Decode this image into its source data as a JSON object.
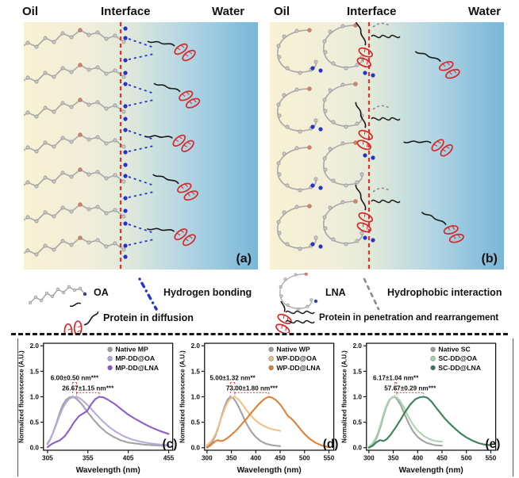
{
  "figure": {
    "panel_a": {
      "oil": "Oil",
      "interface": "Interface",
      "water": "Water",
      "label": "(a)"
    },
    "panel_b": {
      "oil": "Oil",
      "interface": "Interface",
      "water": "Water",
      "label": "(b)"
    },
    "legend": {
      "oa": "OA",
      "hydrogen_bonding": "Hydrogen bonding",
      "protein_diffusion": "Protein in diffusion",
      "lna": "LNA",
      "hydrophobic": "Hydrophobic interaction",
      "protein_penetration": "Protein in penetration and rearrangement"
    },
    "colors": {
      "interface_line": "#e03131",
      "hydrogen_bond": "#2433c9",
      "protein_red": "#d42a2a",
      "chain_gray": "#a9a9a9",
      "oil_bg": "#f8f1d2",
      "water_bg": "#7ab7d8",
      "annotation_red": "#e23b3b"
    }
  },
  "chart_data": [
    {
      "type": "line",
      "panel_label": "(c)",
      "xlabel": "Wavelength (nm)",
      "ylabel": "Normalized fluorescence (A.U.)",
      "xlim": [
        300,
        460
      ],
      "ylim": [
        -0.05,
        2.05
      ],
      "xticks": [
        305,
        355,
        405,
        455
      ],
      "yticks": [
        0.0,
        0.5,
        1.0,
        1.5,
        2.0
      ],
      "legend_position": "top-right",
      "series": [
        {
          "name": "Native MP",
          "color": "#9e9e9e",
          "x": [
            305,
            308,
            312,
            316,
            320,
            324,
            328,
            332,
            336,
            340,
            345,
            350,
            356,
            362,
            370,
            378,
            386,
            395,
            405,
            415,
            425,
            435,
            445,
            455
          ],
          "y": [
            0.07,
            0.15,
            0.3,
            0.48,
            0.68,
            0.84,
            0.94,
            0.99,
            1.0,
            0.97,
            0.9,
            0.8,
            0.67,
            0.55,
            0.41,
            0.3,
            0.22,
            0.15,
            0.1,
            0.08,
            0.06,
            0.05,
            0.04,
            0.04
          ]
        },
        {
          "name": "MP-DD@OA",
          "color": "#b6a6d9",
          "x": [
            305,
            308,
            312,
            316,
            320,
            324,
            328,
            332,
            336,
            341,
            346,
            352,
            358,
            366,
            374,
            382,
            390,
            400,
            410,
            420,
            430,
            440,
            448,
            455
          ],
          "y": [
            0.09,
            0.16,
            0.3,
            0.46,
            0.63,
            0.78,
            0.89,
            0.96,
            0.99,
            1.0,
            0.96,
            0.88,
            0.78,
            0.64,
            0.51,
            0.4,
            0.31,
            0.22,
            0.16,
            0.12,
            0.09,
            0.07,
            0.06,
            0.05
          ]
        },
        {
          "name": "MP-DD@LNA",
          "color": "#8657c2",
          "x": [
            305,
            310,
            315,
            320,
            326,
            332,
            338,
            344,
            349,
            354,
            359,
            364,
            369,
            374,
            380,
            388,
            396,
            404,
            412,
            420,
            428,
            436,
            444,
            455
          ],
          "y": [
            0.01,
            0.07,
            0.11,
            0.14,
            0.22,
            0.35,
            0.5,
            0.62,
            0.67,
            0.72,
            0.85,
            0.95,
            1.0,
            0.99,
            0.94,
            0.86,
            0.76,
            0.66,
            0.58,
            0.51,
            0.44,
            0.38,
            0.33,
            0.27
          ]
        }
      ],
      "annotations": [
        {
          "text": "6.00±0.50 nm***",
          "x1": 336,
          "x2": 341,
          "y": 1.28
        },
        {
          "text": "26.67±1.15 nm***",
          "x1": 341,
          "x2": 369,
          "y": 1.08
        }
      ]
    },
    {
      "type": "line",
      "panel_label": "(d)",
      "xlabel": "Wavelength (nm)",
      "ylabel": "Normalized fluorescence (A.U.)",
      "xlim": [
        295,
        560
      ],
      "ylim": [
        -0.05,
        2.05
      ],
      "xticks": [
        300,
        350,
        400,
        450,
        500,
        550
      ],
      "yticks": [
        0.0,
        0.5,
        1.0,
        1.5,
        2.0
      ],
      "legend_position": "top-right",
      "series": [
        {
          "name": "Native WP",
          "color": "#9e9e9e",
          "x": [
            300,
            306,
            312,
            318,
            324,
            330,
            336,
            342,
            348,
            354,
            360,
            368,
            376,
            384,
            392,
            400,
            410,
            420,
            432,
            450
          ],
          "y": [
            0.02,
            0.06,
            0.13,
            0.25,
            0.42,
            0.62,
            0.81,
            0.94,
            1.0,
            0.97,
            0.89,
            0.74,
            0.57,
            0.42,
            0.3,
            0.21,
            0.13,
            0.08,
            0.05,
            0.03
          ]
        },
        {
          "name": "WP-DD@OA",
          "color": "#f0bf85",
          "x": [
            300,
            306,
            312,
            318,
            324,
            330,
            336,
            343,
            350,
            357,
            364,
            372,
            380,
            388,
            396,
            404,
            412,
            420,
            430,
            440,
            450
          ],
          "y": [
            0.05,
            0.1,
            0.17,
            0.28,
            0.43,
            0.6,
            0.76,
            0.9,
            0.98,
            1.0,
            0.95,
            0.86,
            0.75,
            0.65,
            0.57,
            0.5,
            0.45,
            0.41,
            0.37,
            0.35,
            0.33
          ]
        },
        {
          "name": "WP-DD@LNA",
          "color": "#dd7b2e",
          "x": [
            300,
            308,
            316,
            322,
            328,
            334,
            342,
            352,
            362,
            372,
            382,
            392,
            402,
            412,
            420,
            427,
            434,
            442,
            450,
            458,
            466,
            472,
            480,
            490,
            500,
            510,
            522,
            536,
            550
          ],
          "y": [
            0.0,
            0.05,
            0.12,
            0.15,
            0.13,
            0.14,
            0.19,
            0.27,
            0.36,
            0.47,
            0.58,
            0.7,
            0.81,
            0.91,
            0.97,
            1.0,
            0.98,
            0.93,
            0.85,
            0.74,
            0.62,
            0.58,
            0.5,
            0.38,
            0.27,
            0.18,
            0.1,
            0.04,
            0.01
          ]
        }
      ],
      "annotations": [
        {
          "text": "5.00±1.32 nm**",
          "x1": 348,
          "x2": 357,
          "y": 1.28
        },
        {
          "text": "73.00±1.80 nm***",
          "x1": 357,
          "x2": 427,
          "y": 1.08
        }
      ]
    },
    {
      "type": "line",
      "panel_label": "(e)",
      "xlabel": "Wavelength (nm)",
      "ylabel": "Normalized fluorescence (A.U.)",
      "xlim": [
        295,
        560
      ],
      "ylim": [
        -0.05,
        2.05
      ],
      "xticks": [
        300,
        350,
        400,
        450,
        500,
        550
      ],
      "yticks": [
        0.0,
        0.5,
        1.0,
        1.5,
        2.0
      ],
      "legend_position": "top-right",
      "series": [
        {
          "name": "Native SC",
          "color": "#9e9e9e",
          "x": [
            300,
            306,
            312,
            318,
            324,
            330,
            336,
            342,
            348,
            353,
            358,
            366,
            374,
            382,
            390,
            398,
            408,
            420,
            435,
            450
          ],
          "y": [
            0.01,
            0.05,
            0.12,
            0.24,
            0.42,
            0.62,
            0.8,
            0.93,
            0.99,
            1.0,
            0.95,
            0.82,
            0.64,
            0.47,
            0.33,
            0.23,
            0.15,
            0.09,
            0.05,
            0.04
          ]
        },
        {
          "name": "SC-DD@OA",
          "color": "#a5d4b2",
          "x": [
            300,
            306,
            312,
            318,
            324,
            330,
            336,
            342,
            350,
            357,
            364,
            372,
            380,
            388,
            396,
            404,
            414,
            424,
            436,
            450
          ],
          "y": [
            0.02,
            0.07,
            0.15,
            0.28,
            0.46,
            0.66,
            0.83,
            0.94,
            1.0,
            0.99,
            0.92,
            0.79,
            0.63,
            0.49,
            0.38,
            0.3,
            0.22,
            0.17,
            0.13,
            0.12
          ]
        },
        {
          "name": "SC-DD@LNA",
          "color": "#317a50",
          "x": [
            300,
            308,
            316,
            323,
            330,
            337,
            345,
            355,
            365,
            375,
            385,
            395,
            404,
            412,
            420,
            428,
            436,
            445,
            455,
            465,
            476,
            488,
            500,
            512,
            525,
            538,
            550
          ],
          "y": [
            0.0,
            0.04,
            0.11,
            0.15,
            0.13,
            0.17,
            0.26,
            0.4,
            0.55,
            0.71,
            0.85,
            0.95,
            0.99,
            1.0,
            0.98,
            0.91,
            0.81,
            0.7,
            0.58,
            0.48,
            0.38,
            0.28,
            0.2,
            0.14,
            0.09,
            0.06,
            0.05
          ]
        }
      ],
      "annotations": [
        {
          "text": "6.17±1.04 nm**",
          "x1": 353,
          "x2": 357,
          "y": 1.28
        },
        {
          "text": "57.67±0.29 nm***",
          "x1": 357,
          "x2": 412,
          "y": 1.08
        }
      ]
    }
  ]
}
